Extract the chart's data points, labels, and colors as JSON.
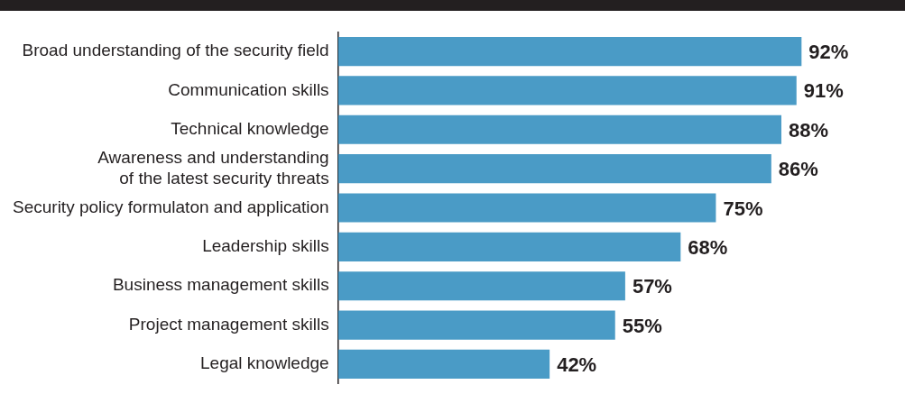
{
  "chart_data": {
    "type": "bar",
    "orientation": "horizontal",
    "categories": [
      "Broad understanding of the security field",
      "Communication skills",
      "Technical knowledge",
      "Awareness and understanding\nof the latest security threats",
      "Security policy formulaton and application",
      "Leadership skills",
      "Business management skills",
      "Project management skills",
      "Legal knowledge"
    ],
    "values": [
      92,
      91,
      88,
      86,
      75,
      68,
      57,
      55,
      42
    ],
    "value_labels": [
      "92%",
      "91%",
      "88%",
      "86%",
      "75%",
      "68%",
      "57%",
      "55%",
      "42%"
    ],
    "color": "#4a9bc6",
    "tick_labels": "y"
  }
}
